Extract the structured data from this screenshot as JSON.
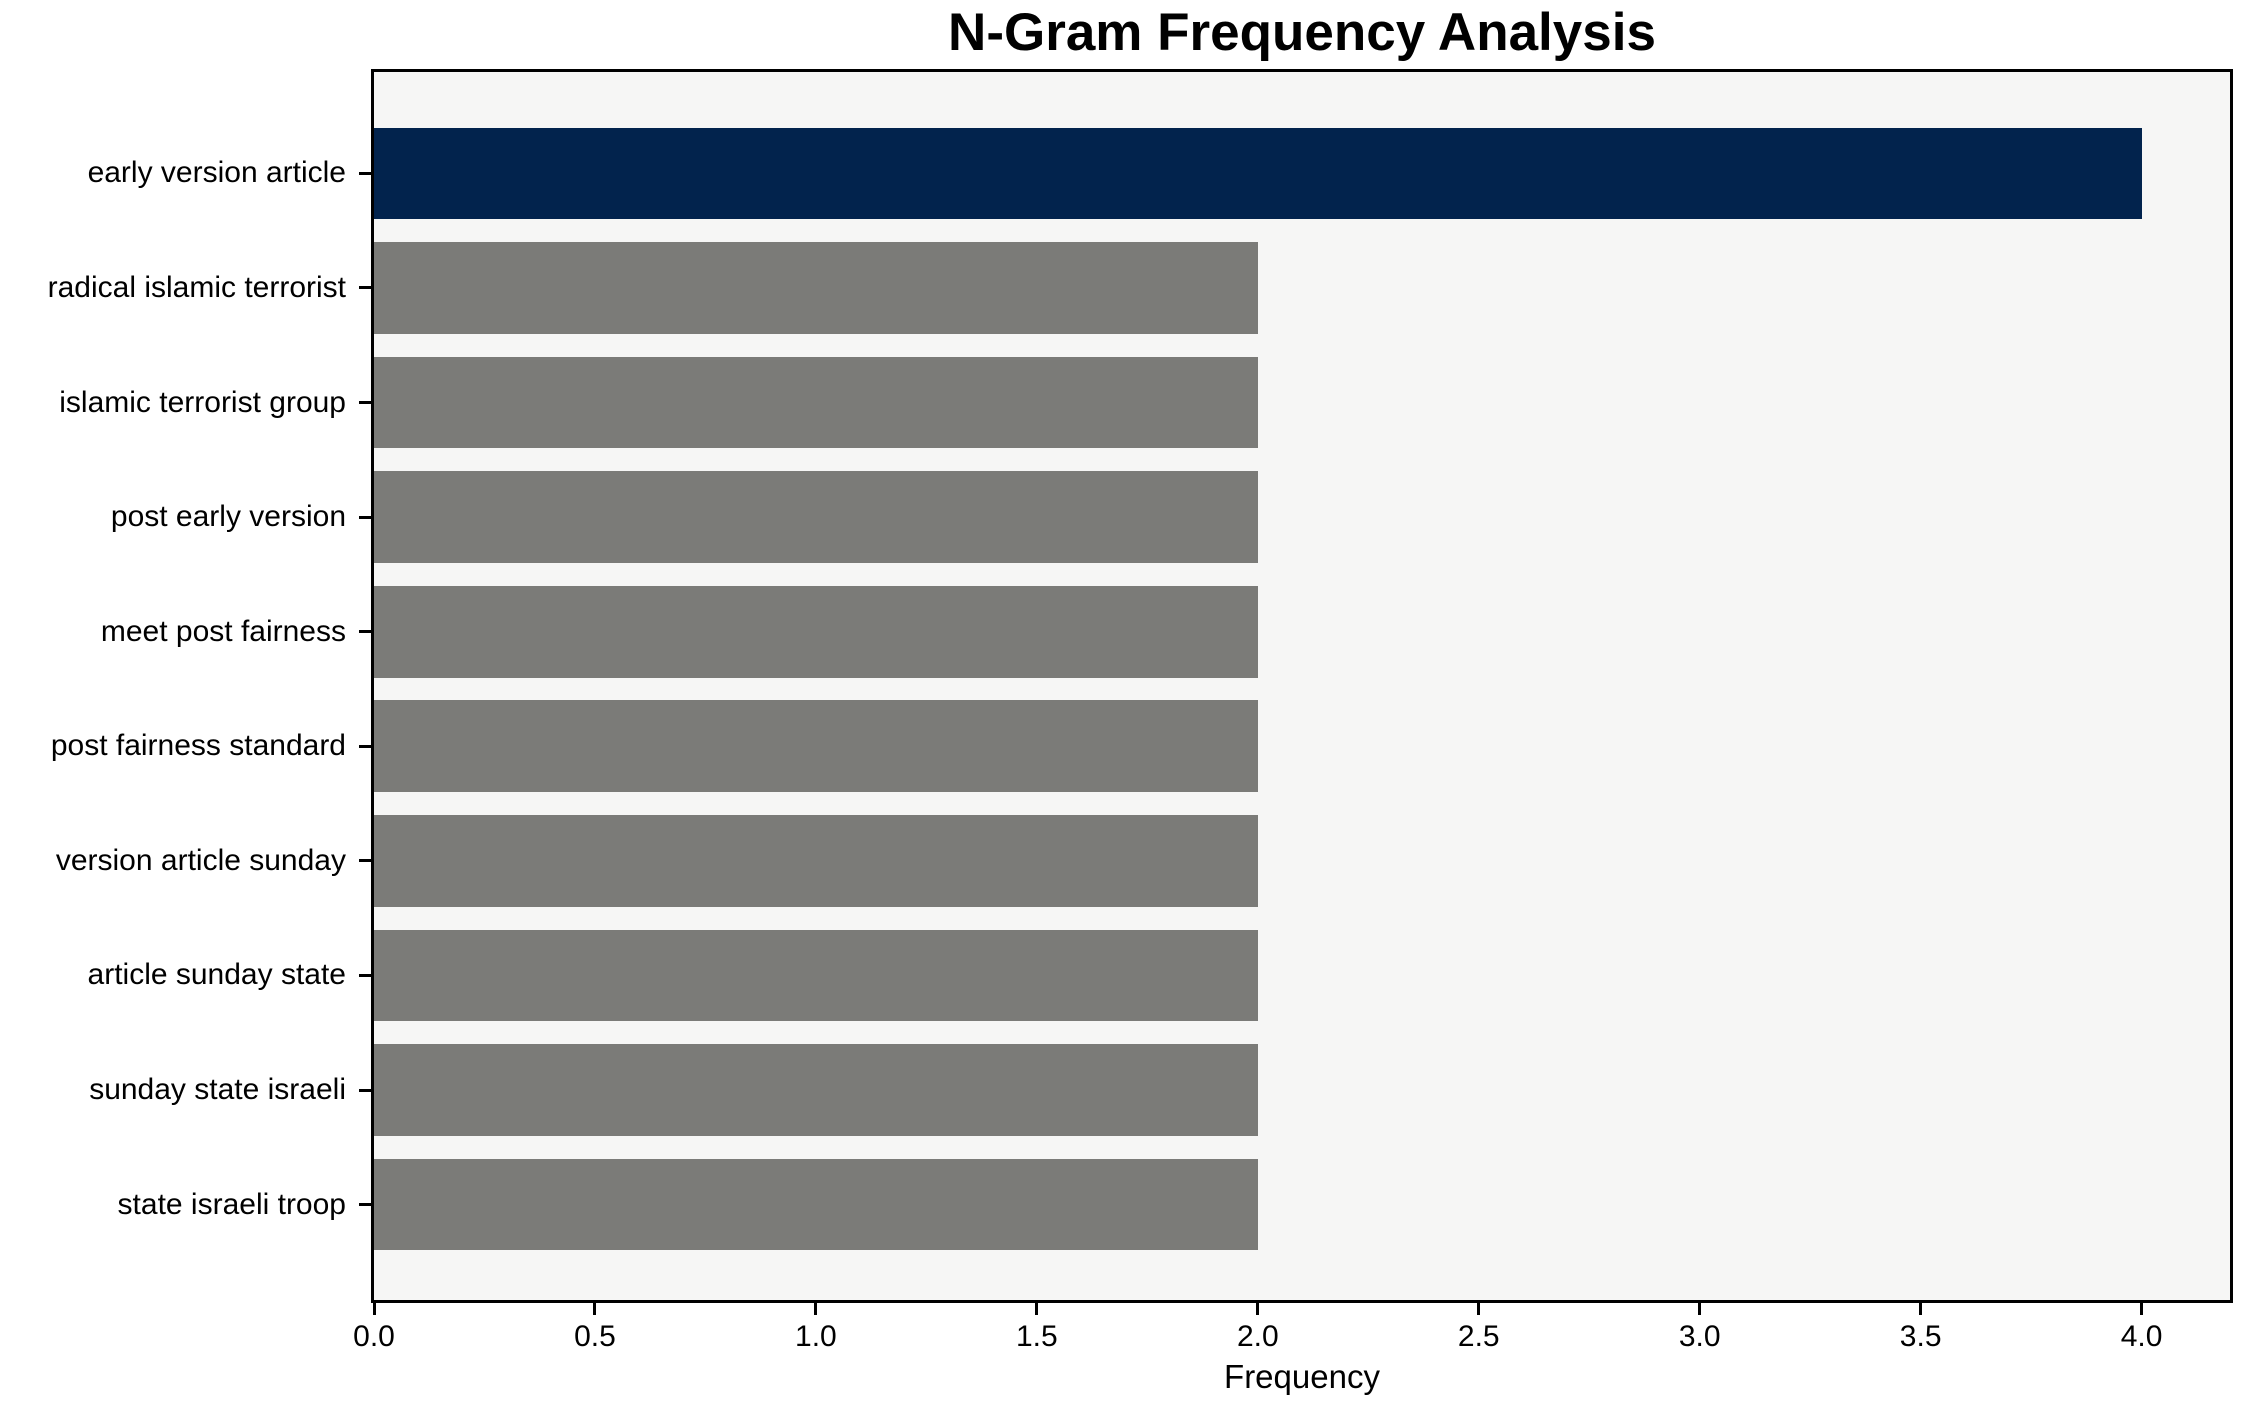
{
  "chart_data": {
    "type": "bar",
    "orientation": "horizontal",
    "title": "N-Gram Frequency Analysis",
    "xlabel": "Frequency",
    "ylabel": "",
    "categories": [
      "early version article",
      "radical islamic terrorist",
      "islamic terrorist group",
      "post early version",
      "meet post fairness",
      "post fairness standard",
      "version article sunday",
      "article sunday state",
      "sunday state israeli",
      "state israeli troop"
    ],
    "values": [
      4,
      2,
      2,
      2,
      2,
      2,
      2,
      2,
      2,
      2
    ],
    "xticks": [
      "0.0",
      "0.5",
      "1.0",
      "1.5",
      "2.0",
      "2.5",
      "3.0",
      "3.5",
      "4.0"
    ],
    "xlim": [
      0,
      4.2
    ],
    "grid": false,
    "legend": null,
    "colors": {
      "highlight_bar": "#02234d",
      "default_bar": "#7b7b78",
      "plot_background": "#f6f6f5",
      "spine": "#000000",
      "text": "#000000"
    },
    "highlight_index": 0
  }
}
